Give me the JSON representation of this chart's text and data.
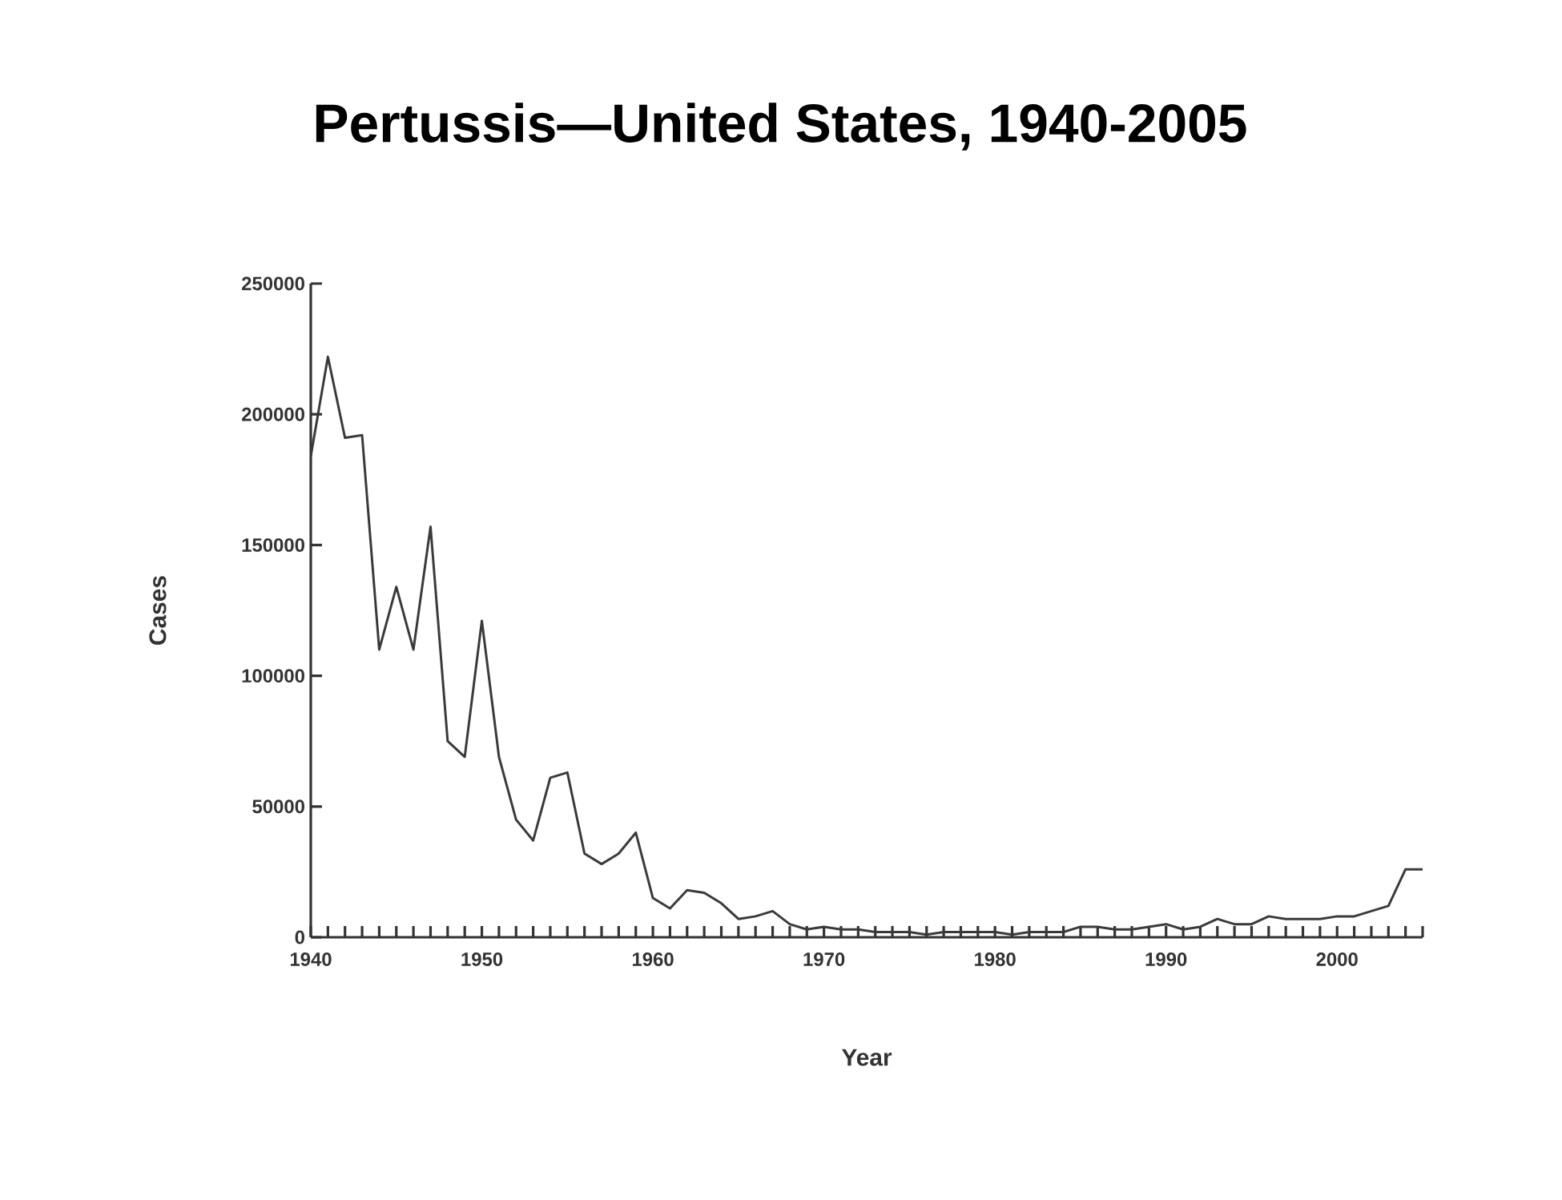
{
  "chart_data": {
    "type": "line",
    "title": "Pertussis—United States, 1940-2005",
    "xlabel": "Year",
    "ylabel": "Cases",
    "x": [
      1940,
      1941,
      1942,
      1943,
      1944,
      1945,
      1946,
      1947,
      1948,
      1949,
      1950,
      1951,
      1952,
      1953,
      1954,
      1955,
      1956,
      1957,
      1958,
      1959,
      1960,
      1961,
      1962,
      1963,
      1964,
      1965,
      1966,
      1967,
      1968,
      1969,
      1970,
      1971,
      1972,
      1973,
      1974,
      1975,
      1976,
      1977,
      1978,
      1979,
      1980,
      1981,
      1982,
      1983,
      1984,
      1985,
      1986,
      1987,
      1988,
      1989,
      1990,
      1991,
      1992,
      1993,
      1994,
      1995,
      1996,
      1997,
      1998,
      1999,
      2000,
      2001,
      2002,
      2003,
      2004,
      2005
    ],
    "series": [
      {
        "color": "#3a3a3a",
        "values": [
          184000,
          222000,
          191000,
          192000,
          110000,
          134000,
          110000,
          157000,
          75000,
          69000,
          121000,
          69000,
          45000,
          37000,
          61000,
          63000,
          32000,
          28000,
          32000,
          40000,
          15000,
          11000,
          18000,
          17000,
          13000,
          7000,
          8000,
          10000,
          5000,
          3000,
          4000,
          3000,
          3000,
          2000,
          2000,
          2000,
          1000,
          2000,
          2000,
          2000,
          2000,
          1000,
          2000,
          2000,
          2000,
          4000,
          4000,
          3000,
          3000,
          4000,
          5000,
          3000,
          4000,
          7000,
          5000,
          5000,
          8000,
          7000,
          7000,
          7000,
          8000,
          8000,
          10000,
          12000,
          26000,
          26000
        ]
      }
    ],
    "xlim": [
      1940,
      2005
    ],
    "ylim": [
      0,
      250000
    ],
    "xticks": [
      1940,
      {
        "value": 1941,
        "label": null
      },
      {
        "value": 1942,
        "label": null
      },
      {
        "value": 1943,
        "label": null
      },
      {
        "value": 1944,
        "label": null
      },
      {
        "value": 1945,
        "label": null
      },
      {
        "value": 1946,
        "label": null
      },
      {
        "value": 1947,
        "label": null
      },
      {
        "value": 1948,
        "label": null
      },
      {
        "value": 1949,
        "label": null
      },
      1950,
      {
        "value": 1951,
        "label": null
      },
      {
        "value": 1952,
        "label": null
      },
      {
        "value": 1953,
        "label": null
      },
      {
        "value": 1954,
        "label": null
      },
      {
        "value": 1955,
        "label": null
      },
      {
        "value": 1956,
        "label": null
      },
      {
        "value": 1957,
        "label": null
      },
      {
        "value": 1958,
        "label": null
      },
      {
        "value": 1959,
        "label": null
      },
      1960,
      {
        "value": 1961,
        "label": null
      },
      {
        "value": 1962,
        "label": null
      },
      {
        "value": 1963,
        "label": null
      },
      {
        "value": 1964,
        "label": null
      },
      {
        "value": 1965,
        "label": null
      },
      {
        "value": 1966,
        "label": null
      },
      {
        "value": 1967,
        "label": null
      },
      {
        "value": 1968,
        "label": null
      },
      {
        "value": 1969,
        "label": null
      },
      1970,
      {
        "value": 1971,
        "label": null
      },
      {
        "value": 1972,
        "label": null
      },
      {
        "value": 1973,
        "label": null
      },
      {
        "value": 1974,
        "label": null
      },
      {
        "value": 1975,
        "label": null
      },
      {
        "value": 1976,
        "label": null
      },
      {
        "value": 1977,
        "label": null
      },
      {
        "value": 1978,
        "label": null
      },
      {
        "value": 1979,
        "label": null
      },
      1980,
      {
        "value": 1981,
        "label": null
      },
      {
        "value": 1982,
        "label": null
      },
      {
        "value": 1983,
        "label": null
      },
      {
        "value": 1984,
        "label": null
      },
      {
        "value": 1985,
        "label": null
      },
      {
        "value": 1986,
        "label": null
      },
      {
        "value": 1987,
        "label": null
      },
      {
        "value": 1988,
        "label": null
      },
      {
        "value": 1989,
        "label": null
      },
      1990,
      {
        "value": 1991,
        "label": null
      },
      {
        "value": 1992,
        "label": null
      },
      {
        "value": 1993,
        "label": null
      },
      {
        "value": 1994,
        "label": null
      },
      {
        "value": 1995,
        "label": null
      },
      {
        "value": 1996,
        "label": null
      },
      {
        "value": 1997,
        "label": null
      },
      {
        "value": 1998,
        "label": null
      },
      {
        "value": 1999,
        "label": null
      },
      2000,
      {
        "value": 2001,
        "label": null
      },
      {
        "value": 2002,
        "label": null
      },
      {
        "value": 2003,
        "label": null
      },
      {
        "value": 2004,
        "label": null
      },
      {
        "value": 2005,
        "label": null
      }
    ],
    "yticks": [
      0,
      50000,
      100000,
      150000,
      200000,
      250000
    ],
    "grid": false,
    "marker": "none",
    "line_style": "solid"
  }
}
